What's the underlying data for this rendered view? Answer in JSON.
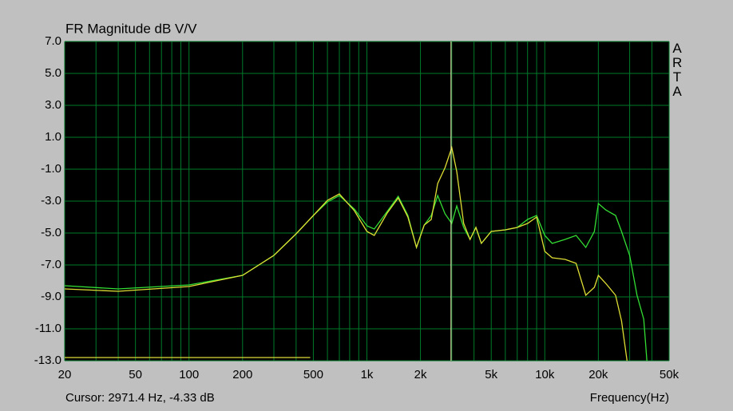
{
  "chart_data": {
    "type": "line",
    "title": "FR Magnitude dB V/V",
    "x_label": "Frequency(Hz)",
    "watermark": "ARTA",
    "log_x": true,
    "grid": true,
    "background": "#000000",
    "grid_color": "#007a2a",
    "xlim": [
      20,
      50000
    ],
    "ylim": [
      -13,
      7
    ],
    "xticks": [
      20,
      50,
      100,
      200,
      500,
      {
        "value": 1000,
        "label": "1k"
      },
      {
        "value": 2000,
        "label": "2k"
      },
      {
        "value": 5000,
        "label": "5k"
      },
      {
        "value": 10000,
        "label": "10k"
      },
      {
        "value": 20000,
        "label": "20k"
      },
      {
        "value": 50000,
        "label": "50k"
      }
    ],
    "xgrid": [
      30,
      40,
      60,
      70,
      80,
      90,
      300,
      400,
      600,
      700,
      800,
      900,
      3000,
      4000,
      6000,
      7000,
      8000,
      9000,
      30000,
      40000
    ],
    "yticks": [
      {
        "value": 7,
        "label": "7.0"
      },
      {
        "value": 5,
        "label": "5.0"
      },
      {
        "value": 3,
        "label": "3.0"
      },
      {
        "value": 1,
        "label": "1.0"
      },
      {
        "value": -1,
        "label": "-1.0"
      },
      {
        "value": -3,
        "label": "-3.0"
      },
      {
        "value": -5,
        "label": "-5.0"
      },
      {
        "value": -7,
        "label": "-7.0"
      },
      {
        "value": -9,
        "label": "-9.0"
      },
      {
        "value": -11,
        "label": "-11.0"
      },
      {
        "value": -13,
        "label": "-13.0"
      }
    ],
    "cursor": {
      "x": 2971.4,
      "y": -4.33,
      "label": "Cursor:  2971.4 Hz, -4.33 dB",
      "color": "#ffffc0"
    },
    "series": [
      {
        "color": "#33dd33",
        "x": [
          20,
          40,
          100,
          200,
          300,
          400,
          500,
          600,
          700,
          850,
          1000,
          1100,
          1300,
          1500,
          1700,
          1900,
          2100,
          2300,
          2500,
          2750,
          3000,
          3200,
          3500,
          3800,
          4100,
          4400,
          5000,
          6000,
          7000,
          8000,
          9000,
          10000,
          11000,
          13000,
          15000,
          17000,
          19000,
          20000,
          22000,
          25000,
          27000,
          30000,
          33000,
          36000,
          37500
        ],
        "values": [
          -8.3,
          -8.5,
          -8.25,
          -7.65,
          -6.4,
          -5.05,
          -3.9,
          -3.05,
          -2.65,
          -3.5,
          -4.55,
          -4.75,
          -3.65,
          -2.7,
          -3.9,
          -5.9,
          -4.5,
          -3.9,
          -2.65,
          -3.8,
          -4.4,
          -3.3,
          -4.65,
          -5.4,
          -4.65,
          -5.65,
          -4.9,
          -4.8,
          -4.65,
          -4.15,
          -3.9,
          -5.15,
          -5.65,
          -5.4,
          -5.15,
          -5.9,
          -4.9,
          -3.15,
          -3.55,
          -3.9,
          -4.9,
          -6.4,
          -8.9,
          -10.4,
          -13
        ]
      },
      {
        "color": "#dddd33",
        "x": [
          20,
          40,
          100,
          200,
          300,
          400,
          500,
          600,
          700,
          850,
          1000,
          1100,
          1300,
          1500,
          1700,
          1900,
          2100,
          2300,
          2500,
          2750,
          3000,
          3200,
          3500,
          3800,
          4100,
          4400,
          5000,
          6000,
          7000,
          8000,
          9000,
          10000,
          11000,
          13000,
          15000,
          17000,
          19000,
          20000,
          22000,
          25000,
          27000,
          29000
        ],
        "values": [
          -8.5,
          -8.65,
          -8.35,
          -7.65,
          -6.4,
          -5.05,
          -3.9,
          -2.95,
          -2.55,
          -3.6,
          -4.9,
          -5.15,
          -3.75,
          -2.8,
          -4.0,
          -5.9,
          -4.5,
          -4.15,
          -1.9,
          -0.9,
          0.35,
          -1.15,
          -4.4,
          -5.4,
          -4.65,
          -5.65,
          -4.9,
          -4.8,
          -4.65,
          -4.4,
          -4.0,
          -6.15,
          -6.55,
          -6.65,
          -6.9,
          -8.9,
          -8.4,
          -7.65,
          -8.15,
          -8.9,
          -10.5,
          -13
        ]
      },
      {
        "color": "#dddd33",
        "x": [
          20,
          480
        ],
        "values": [
          -12.8,
          -12.8
        ]
      }
    ]
  }
}
